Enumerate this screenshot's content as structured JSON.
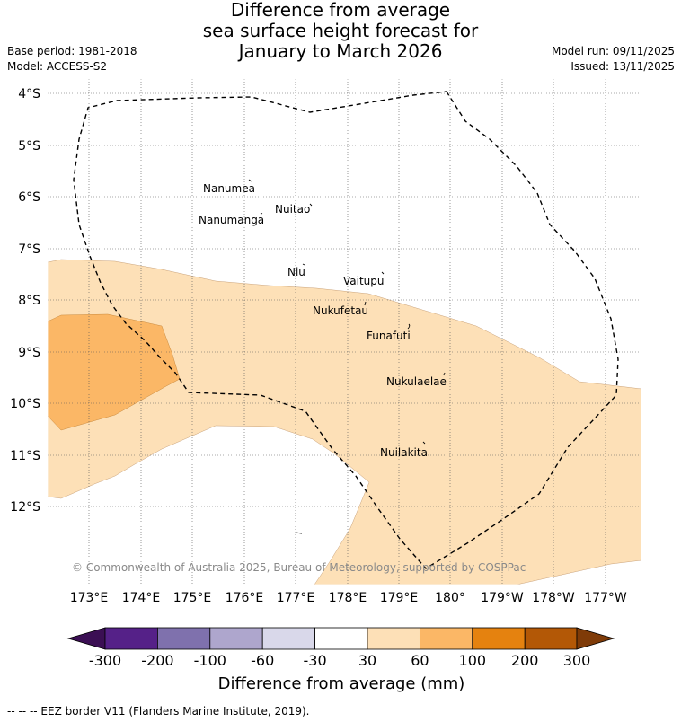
{
  "title": {
    "line1": "Difference from average",
    "line2": "sea surface height forecast for",
    "line3": "January to March 2026"
  },
  "meta": {
    "base_period": "Base period: 1981-2018",
    "model": "Model: ACCESS-S2",
    "model_run": "Model run: 09/11/2025",
    "issued": "Issued: 13/11/2025"
  },
  "map": {
    "latitude_labels": [
      "4°S",
      "5°S",
      "6°S",
      "7°S",
      "8°S",
      "9°S",
      "10°S",
      "11°S",
      "12°S"
    ],
    "longitude_labels": [
      "173°E",
      "174°E",
      "175°E",
      "176°E",
      "177°E",
      "178°E",
      "179°E",
      "180°",
      "179°W",
      "178°W",
      "177°W"
    ],
    "islands": [
      "Nanumea",
      "Nuitao",
      "Nanumanga",
      "Niu",
      "Vaitupu",
      "Nukufetau",
      "Funafuti",
      "Nukulaelae",
      "Nuilakita"
    ],
    "copyright": "© Commonwealth of Australia 2025, Bureau of Meteorology, supported by COSPPac",
    "fill_colors": {
      "light_orange": "#fde0b7",
      "medium_orange": "#fbb766"
    }
  },
  "colorbar": {
    "tick_labels": [
      "-300",
      "-200",
      "-100",
      "-60",
      "-30",
      "30",
      "60",
      "100",
      "200",
      "300"
    ],
    "colors": [
      "#3b0f54",
      "#552188",
      "#7f71ad",
      "#aea6cd",
      "#d9d8ea",
      "#ffffff",
      "#fde0b7",
      "#fbb766",
      "#e5820f",
      "#b35806",
      "#7f3b08"
    ],
    "title": "Difference from average (mm)"
  },
  "footnote": "--  --  -- EEZ border V11 (Flanders Marine Institute, 2019)."
}
